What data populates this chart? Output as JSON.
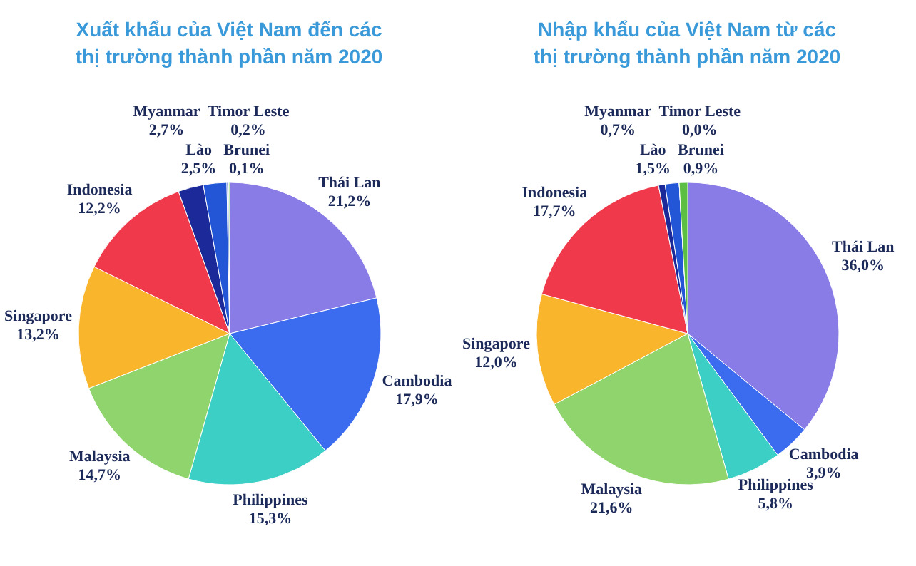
{
  "chart_data": [
    {
      "type": "pie",
      "title": "Xuất khẩu của Việt Nam đến các\nthị trường thành phần năm 2020",
      "categories": [
        "Thái Lan",
        "Cambodia",
        "Philippines",
        "Malaysia",
        "Singapore",
        "Indonesia",
        "Myanmar",
        "Lào",
        "Timor Leste",
        "Brunei"
      ],
      "values": [
        21.2,
        17.9,
        15.3,
        14.7,
        13.2,
        12.2,
        2.7,
        2.5,
        0.2,
        0.1
      ],
      "value_labels": [
        "21,2%",
        "17,9%",
        "15,3%",
        "14,7%",
        "13,2%",
        "12,2%",
        "2,7%",
        "2,5%",
        "0,2%",
        "0,1%"
      ],
      "colors": [
        "#8a7ce6",
        "#3b6cf0",
        "#3ccfc6",
        "#8fd46c",
        "#f9b52c",
        "#f03a4c",
        "#1b2a98",
        "#2356d6",
        "#1f4fc8",
        "#5cbf44"
      ]
    },
    {
      "type": "pie",
      "title": "Nhập khẩu của Việt Nam từ các\nthị trường thành phần năm 2020",
      "categories": [
        "Thái Lan",
        "Cambodia",
        "Philippines",
        "Malaysia",
        "Singapore",
        "Indonesia",
        "Myanmar",
        "Lào",
        "Timor Leste",
        "Brunei"
      ],
      "values": [
        36.0,
        3.9,
        5.8,
        21.6,
        12.0,
        17.7,
        0.7,
        1.5,
        0.0,
        0.9
      ],
      "value_labels": [
        "36,0%",
        "3,9%",
        "5,8%",
        "21,6%",
        "12,0%",
        "17,7%",
        "0,7%",
        "1,5%",
        "0,0%",
        "0,9%"
      ],
      "colors": [
        "#8a7ce6",
        "#3b6cf0",
        "#3ccfc6",
        "#8fd46c",
        "#f9b52c",
        "#f03a4c",
        "#1b2a98",
        "#2356d6",
        "#1f4fc8",
        "#5cbf44"
      ]
    }
  ]
}
